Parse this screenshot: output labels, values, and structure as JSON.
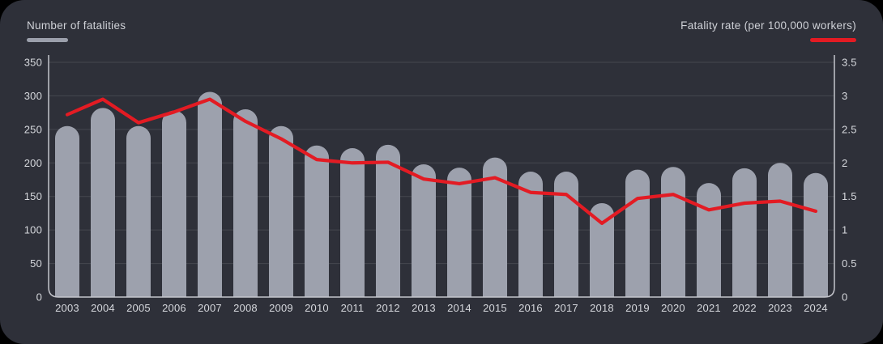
{
  "legend": {
    "left": {
      "label": "Number of fatalities",
      "swatch_color": "#9ca0ac"
    },
    "right": {
      "label": "Fatality rate (per 100,000 workers)",
      "swatch_color": "#e31b23"
    }
  },
  "colors": {
    "page_bg": "#000000",
    "card_bg": "#2e3039",
    "bar": "#9da1ad",
    "line": "#e31b23",
    "grid": "#45474f",
    "axis": "#c4c5cc",
    "tick_text": "#d6d8dd"
  },
  "chart_data": {
    "type": "bar",
    "title": "",
    "grid": true,
    "legend_position": "top",
    "categories": [
      "2003",
      "2004",
      "2005",
      "2006",
      "2007",
      "2008",
      "2009",
      "2010",
      "2011",
      "2012",
      "2013",
      "2014",
      "2015",
      "2016",
      "2017",
      "2018",
      "2019",
      "2020",
      "2021",
      "2022",
      "2023",
      "2024"
    ],
    "series": [
      {
        "name": "Number of fatalities",
        "type": "bar",
        "axis": "left",
        "color": "#9da1ad",
        "values": [
          255,
          282,
          255,
          278,
          306,
          280,
          255,
          226,
          222,
          227,
          198,
          193,
          208,
          187,
          187,
          140,
          190,
          194,
          170,
          192,
          200,
          185
        ]
      },
      {
        "name": "Fatality rate (per 100,000 workers)",
        "type": "line",
        "axis": "right",
        "color": "#e31b23",
        "values": [
          2.72,
          2.95,
          2.6,
          2.76,
          2.95,
          2.62,
          2.36,
          2.05,
          2.0,
          2.01,
          1.76,
          1.69,
          1.78,
          1.56,
          1.53,
          1.1,
          1.47,
          1.53,
          1.3,
          1.4,
          1.43,
          1.28
        ]
      }
    ],
    "left_axis": {
      "label": "Number of fatalities",
      "range": [
        0,
        350
      ],
      "ticks": [
        0,
        50,
        100,
        150,
        200,
        250,
        300,
        350
      ]
    },
    "right_axis": {
      "label": "Fatality rate (per 100,000 workers)",
      "range": [
        0,
        3.5
      ],
      "ticks": [
        0,
        0.5,
        1,
        1.5,
        2,
        2.5,
        3,
        3.5
      ]
    }
  }
}
